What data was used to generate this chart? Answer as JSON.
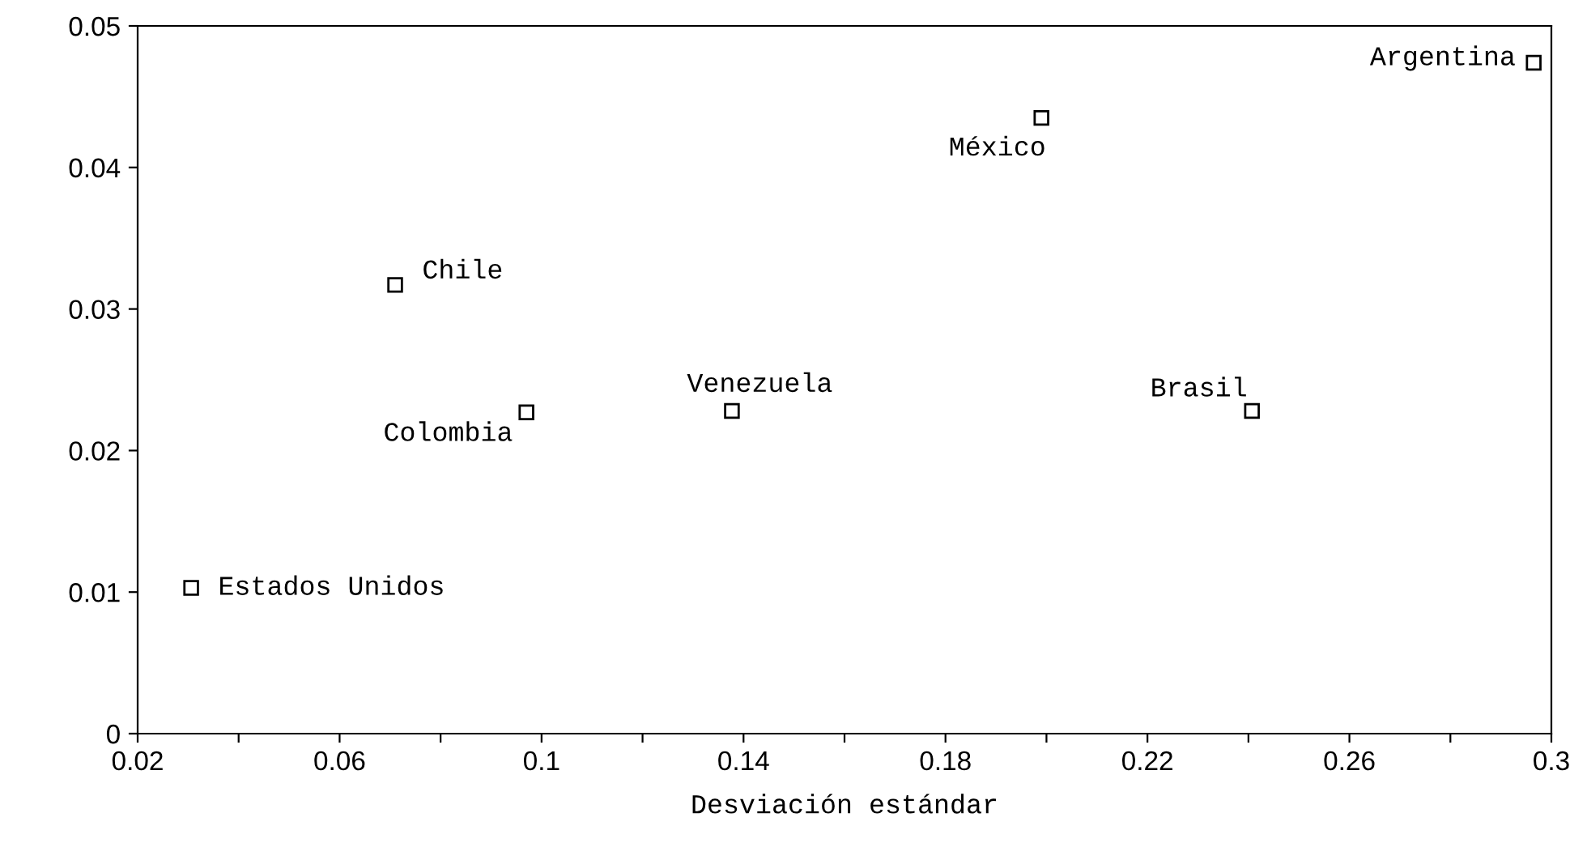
{
  "chart_data": {
    "type": "scatter",
    "xlabel": "Desviación estándar",
    "x": [
      0.0306,
      0.071,
      0.097,
      0.1377,
      0.199,
      0.2407,
      0.2965
    ],
    "series": [
      {
        "color": "#000000",
        "values": [
          0.0103,
          0.0317,
          0.0227,
          0.0228,
          0.0435,
          0.0228,
          0.0474
        ]
      }
    ],
    "marker": "square",
    "xlim": [
      0.02,
      0.3
    ],
    "ylim": [
      0,
      0.05
    ],
    "xticks": [
      0.02,
      {
        "value": 0.04,
        "label": null
      },
      0.06,
      {
        "value": 0.08,
        "label": null
      },
      0.1,
      {
        "value": 0.12,
        "label": null
      },
      0.14,
      {
        "value": 0.16,
        "label": null
      },
      0.18,
      {
        "value": 0.2,
        "label": null
      },
      0.22,
      {
        "value": 0.24,
        "label": null
      },
      0.26,
      {
        "value": 0.28,
        "label": null
      },
      0.3
    ],
    "yticks": [
      0,
      0.01,
      0.02,
      0.03,
      0.04,
      0.05
    ],
    "grid": false,
    "annotations": [
      {
        "text": "Estados Unidos",
        "x": 0.0306,
        "y": 0.0103
      },
      {
        "text": "Chile",
        "x": 0.071,
        "y": 0.0317
      },
      {
        "text": "Colombia",
        "x": 0.097,
        "y": 0.0227
      },
      {
        "text": "Venezuela",
        "x": 0.1377,
        "y": 0.0228
      },
      {
        "text": "México",
        "x": 0.199,
        "y": 0.0435
      },
      {
        "text": "Brasil",
        "x": 0.2407,
        "y": 0.0228
      },
      {
        "text": "Argentina",
        "x": 0.2965,
        "y": 0.0474
      }
    ]
  }
}
